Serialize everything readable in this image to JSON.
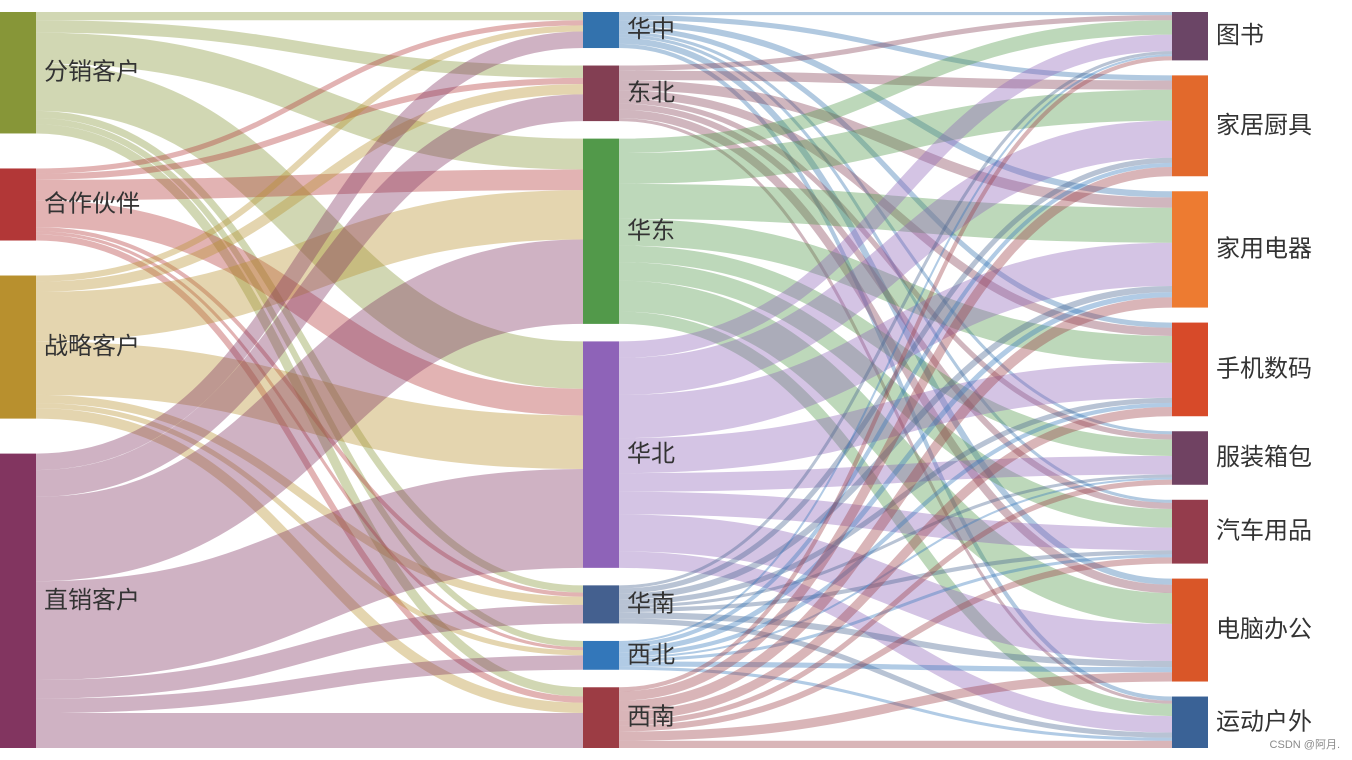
{
  "chart_data": {
    "type": "sankey",
    "title": "",
    "columns": [
      [
        {
          "name": "分销客户",
          "color": "#879638"
        },
        {
          "name": "合作伙伴",
          "color": "#b23737"
        },
        {
          "name": "战略客户",
          "color": "#b8902e"
        },
        {
          "name": "直销客户",
          "color": "#823560"
        }
      ],
      [
        {
          "name": "华中",
          "color": "#3372ad"
        },
        {
          "name": "东北",
          "color": "#833f53"
        },
        {
          "name": "华东",
          "color": "#52994a"
        },
        {
          "name": "华北",
          "color": "#8e63b8"
        },
        {
          "name": "华南",
          "color": "#44608f"
        },
        {
          "name": "西北",
          "color": "#3377ba"
        },
        {
          "name": "西南",
          "color": "#9c3c44"
        }
      ],
      [
        {
          "name": "图书",
          "color": "#6b4566"
        },
        {
          "name": "家居厨具",
          "color": "#e2692c"
        },
        {
          "name": "家用电器",
          "color": "#ed7b31"
        },
        {
          "name": "手机数码",
          "color": "#d74a29"
        },
        {
          "name": "服装箱包",
          "color": "#704262"
        },
        {
          "name": "汽车用品",
          "color": "#943c4c"
        },
        {
          "name": "电脑办公",
          "color": "#d95628"
        },
        {
          "name": "运动户外",
          "color": "#3a6296"
        }
      ]
    ],
    "links": [
      {
        "source": "分销客户",
        "target": "华中",
        "value": 8
      },
      {
        "source": "分销客户",
        "target": "东北",
        "value": 12
      },
      {
        "source": "分销客户",
        "target": "华东",
        "value": 30
      },
      {
        "source": "分销客户",
        "target": "华北",
        "value": 46
      },
      {
        "source": "分销客户",
        "target": "华南",
        "value": 7
      },
      {
        "source": "分销客户",
        "target": "西北",
        "value": 6
      },
      {
        "source": "分销客户",
        "target": "西南",
        "value": 9
      },
      {
        "source": "合作伙伴",
        "target": "华中",
        "value": 5
      },
      {
        "source": "合作伙伴",
        "target": "东北",
        "value": 6
      },
      {
        "source": "合作伙伴",
        "target": "华东",
        "value": 20
      },
      {
        "source": "合作伙伴",
        "target": "华北",
        "value": 26
      },
      {
        "source": "合作伙伴",
        "target": "华南",
        "value": 4
      },
      {
        "source": "合作伙伴",
        "target": "西北",
        "value": 3
      },
      {
        "source": "合作伙伴",
        "target": "西南",
        "value": 6
      },
      {
        "source": "战略客户",
        "target": "华中",
        "value": 6
      },
      {
        "source": "战略客户",
        "target": "东北",
        "value": 10
      },
      {
        "source": "战略客户",
        "target": "华东",
        "value": 48
      },
      {
        "source": "战略客户",
        "target": "华北",
        "value": 52
      },
      {
        "source": "战略客户",
        "target": "华南",
        "value": 8
      },
      {
        "source": "战略客户",
        "target": "西北",
        "value": 5
      },
      {
        "source": "战略客户",
        "target": "西南",
        "value": 10
      },
      {
        "source": "直销客户",
        "target": "华中",
        "value": 16
      },
      {
        "source": "直销客户",
        "target": "东北",
        "value": 26
      },
      {
        "source": "直销客户",
        "target": "华东",
        "value": 82
      },
      {
        "source": "直销客户",
        "target": "华北",
        "value": 96
      },
      {
        "source": "直销客户",
        "target": "华南",
        "value": 18
      },
      {
        "source": "直销客户",
        "target": "西北",
        "value": 14
      },
      {
        "source": "直销客户",
        "target": "西南",
        "value": 34
      },
      {
        "source": "华中",
        "target": "图书",
        "value": 3
      },
      {
        "source": "华中",
        "target": "家居厨具",
        "value": 5
      },
      {
        "source": "华中",
        "target": "家用电器",
        "value": 6
      },
      {
        "source": "华中",
        "target": "手机数码",
        "value": 5
      },
      {
        "source": "华中",
        "target": "服装箱包",
        "value": 3
      },
      {
        "source": "华中",
        "target": "汽车用品",
        "value": 3
      },
      {
        "source": "华中",
        "target": "电脑办公",
        "value": 6
      },
      {
        "source": "华中",
        "target": "运动户外",
        "value": 4
      },
      {
        "source": "东北",
        "target": "图书",
        "value": 5
      },
      {
        "source": "东北",
        "target": "家居厨具",
        "value": 9
      },
      {
        "source": "东北",
        "target": "家用电器",
        "value": 10
      },
      {
        "source": "东北",
        "target": "手机数码",
        "value": 8
      },
      {
        "source": "东北",
        "target": "服装箱包",
        "value": 5
      },
      {
        "source": "东北",
        "target": "汽车用品",
        "value": 6
      },
      {
        "source": "东北",
        "target": "电脑办公",
        "value": 8
      },
      {
        "source": "东北",
        "target": "运动户外",
        "value": 3
      },
      {
        "source": "华东",
        "target": "图书",
        "value": 14
      },
      {
        "source": "华东",
        "target": "家居厨具",
        "value": 30
      },
      {
        "source": "华东",
        "target": "家用电器",
        "value": 34
      },
      {
        "source": "华东",
        "target": "手机数码",
        "value": 26
      },
      {
        "source": "华东",
        "target": "服装箱包",
        "value": 16
      },
      {
        "source": "华东",
        "target": "汽车用品",
        "value": 18
      },
      {
        "source": "华东",
        "target": "电脑办公",
        "value": 30
      },
      {
        "source": "华东",
        "target": "运动户外",
        "value": 12
      },
      {
        "source": "华北",
        "target": "图书",
        "value": 16
      },
      {
        "source": "华北",
        "target": "家居厨具",
        "value": 36
      },
      {
        "source": "华北",
        "target": "家用电器",
        "value": 42
      },
      {
        "source": "华北",
        "target": "手机数码",
        "value": 34
      },
      {
        "source": "华北",
        "target": "服装箱包",
        "value": 18
      },
      {
        "source": "华北",
        "target": "汽车用品",
        "value": 22
      },
      {
        "source": "华北",
        "target": "电脑办公",
        "value": 36
      },
      {
        "source": "华北",
        "target": "运动户外",
        "value": 16
      },
      {
        "source": "华南",
        "target": "图书",
        "value": 3
      },
      {
        "source": "华南",
        "target": "家居厨具",
        "value": 5
      },
      {
        "source": "华南",
        "target": "家用电器",
        "value": 6
      },
      {
        "source": "华南",
        "target": "手机数码",
        "value": 5
      },
      {
        "source": "华南",
        "target": "服装箱包",
        "value": 3
      },
      {
        "source": "华南",
        "target": "汽车用品",
        "value": 4
      },
      {
        "source": "华南",
        "target": "电脑办公",
        "value": 6
      },
      {
        "source": "华南",
        "target": "运动户外",
        "value": 5
      },
      {
        "source": "西北",
        "target": "图书",
        "value": 2
      },
      {
        "source": "西北",
        "target": "家居厨具",
        "value": 4
      },
      {
        "source": "西北",
        "target": "家用电器",
        "value": 5
      },
      {
        "source": "西北",
        "target": "手机数码",
        "value": 4
      },
      {
        "source": "西北",
        "target": "服装箱包",
        "value": 2
      },
      {
        "source": "西北",
        "target": "汽车用品",
        "value": 3
      },
      {
        "source": "西北",
        "target": "电脑办公",
        "value": 5
      },
      {
        "source": "西北",
        "target": "运动户外",
        "value": 3
      },
      {
        "source": "西南",
        "target": "图书",
        "value": 4
      },
      {
        "source": "西南",
        "target": "家居厨具",
        "value": 9
      },
      {
        "source": "西南",
        "target": "家用电器",
        "value": 10
      },
      {
        "source": "西南",
        "target": "手机数码",
        "value": 9
      },
      {
        "source": "西南",
        "target": "服装箱包",
        "value": 5
      },
      {
        "source": "西南",
        "target": "汽车用品",
        "value": 6
      },
      {
        "source": "西南",
        "target": "电脑办公",
        "value": 9
      },
      {
        "source": "西南",
        "target": "运动户外",
        "value": 7
      }
    ]
  },
  "watermark": "CSDN @阿月."
}
